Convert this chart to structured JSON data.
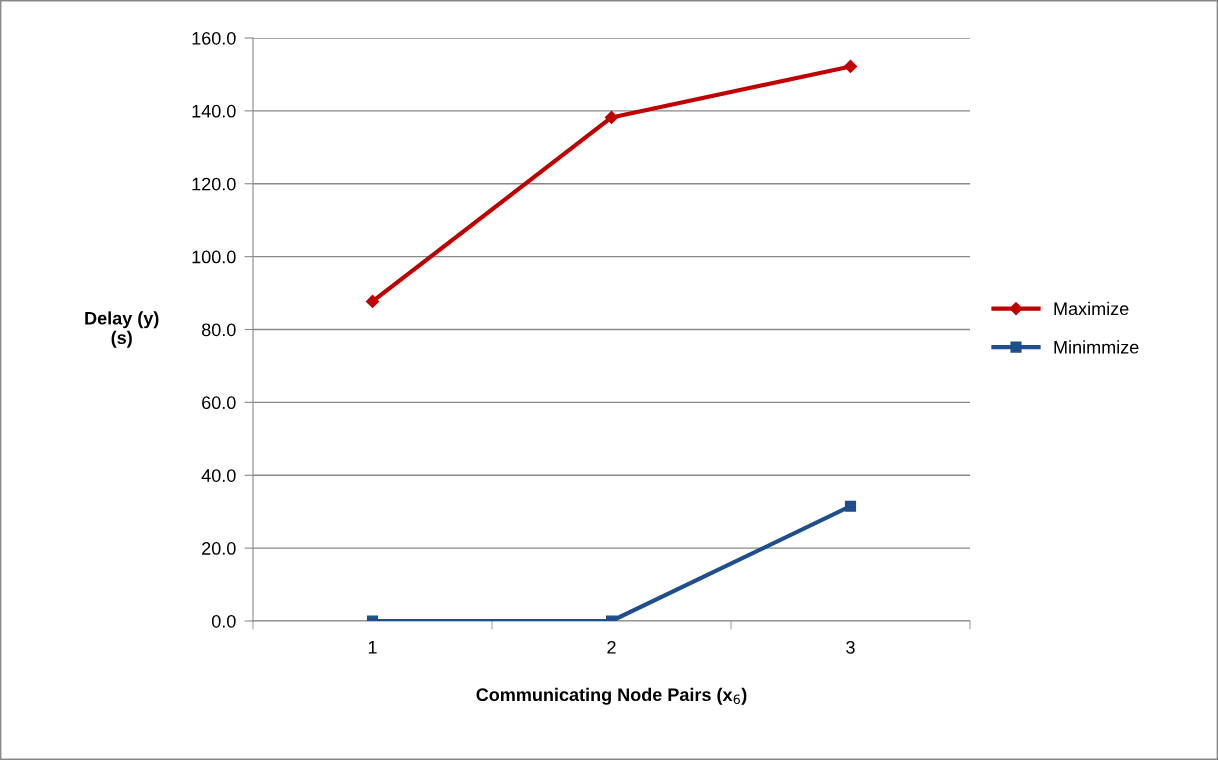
{
  "chart_data": {
    "type": "line",
    "xlabel": "Communicating Node Pairs (x$_{6}$)",
    "ylabel": "Delay (y)\n(s)",
    "categories": [
      "1",
      "2",
      "3"
    ],
    "series": [
      {
        "name": "Maximize",
        "color": "#c00000",
        "marker": "diamond",
        "values": [
          87.7,
          138.2,
          152.2
        ]
      },
      {
        "name": "Minimmize",
        "color": "#1f4e8c",
        "marker": "square",
        "values": [
          0,
          0,
          31.5
        ]
      }
    ],
    "ylim": [
      0,
      160
    ],
    "yticks": [
      {
        "value": 0,
        "label": "0.0"
      },
      {
        "value": 20,
        "label": "20.0"
      },
      {
        "value": 40,
        "label": "40.0"
      },
      {
        "value": 60,
        "label": "60.0"
      },
      {
        "value": 80,
        "label": "80.0"
      },
      {
        "value": 100,
        "label": "100.0"
      },
      {
        "value": 120,
        "label": "120.0"
      },
      {
        "value": 140,
        "label": "140.0"
      },
      {
        "value": 160,
        "label": "160.0"
      }
    ],
    "grid": "y",
    "legend": "right",
    "line_style": "solid"
  }
}
